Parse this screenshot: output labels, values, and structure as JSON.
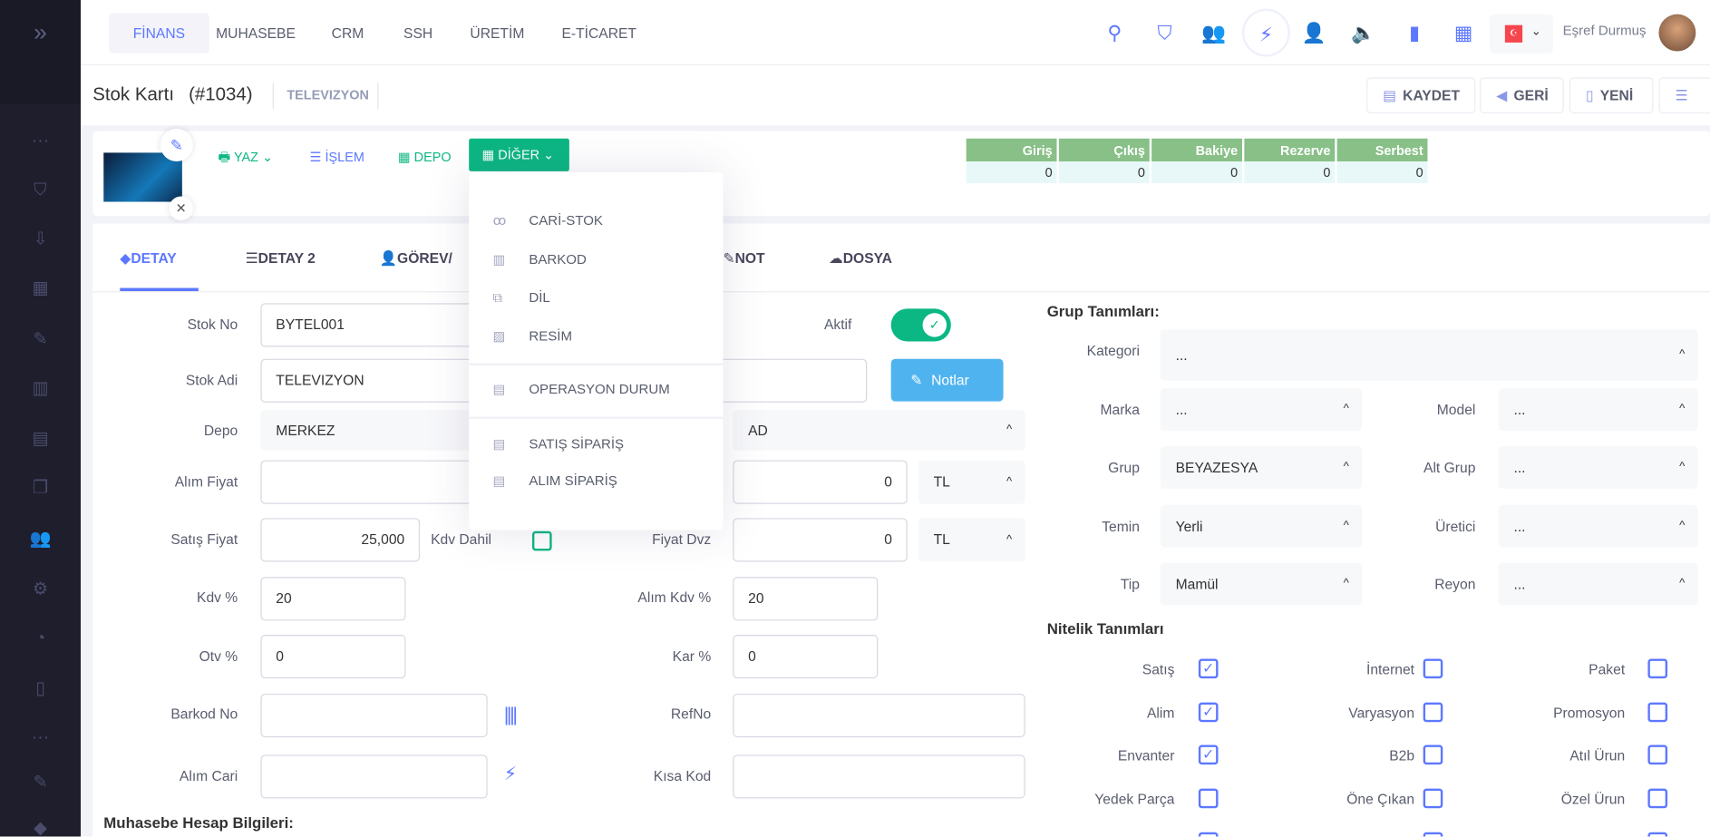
{
  "sidebar": {
    "icons": [
      "chevrons-right-icon",
      "more-icon",
      "basket-icon",
      "inbox-download-icon",
      "grid-icon",
      "edit-icon",
      "columns-icon",
      "layout-icon",
      "copy-icon",
      "users-icon",
      "gear-icon",
      "pie-chart-icon",
      "book-icon",
      "more-icon",
      "pen-icon",
      "diamond-icon"
    ]
  },
  "topnav": {
    "tabs": [
      "FİNANS",
      "MUHASEBE",
      "CRM",
      "SSH",
      "ÜRETİM",
      "E-TİCARET"
    ],
    "active": 0,
    "icons": [
      "search-icon",
      "basket-icon",
      "users-icon",
      "bolt-icon",
      "add-user-icon",
      "sound-icon",
      "bar-chart-icon",
      "apps-icon"
    ],
    "language": "TR",
    "user_name": "Eşref Durmuş"
  },
  "header": {
    "title": "Stok Kartı",
    "id": "(#1034)",
    "subtitle": "TELEVIZYON",
    "buttons": {
      "save": "KAYDET",
      "back": "GERİ",
      "new": "YENİ"
    }
  },
  "toolbar": {
    "print": "YAZ",
    "process": "İŞLEM",
    "warehouse": "DEPO",
    "other": "DİĞER"
  },
  "stock_table": {
    "headers": [
      "Giriş",
      "Çıkış",
      "Bakiye",
      "Rezerve",
      "Serbest"
    ],
    "values": [
      "0",
      "0",
      "0",
      "0",
      "0"
    ]
  },
  "other_menu": {
    "groups": [
      [
        "CARİ-STOK",
        "BARKOD",
        "DİL",
        "RESİM"
      ],
      [
        "OPERASYON DURUM"
      ],
      [
        "SATIŞ SİPARİŞ",
        "ALIM SİPARİŞ"
      ]
    ]
  },
  "tabs": [
    "DETAY",
    "DETAY 2",
    "GÖREV/",
    "NOT",
    "DOSYA"
  ],
  "form": {
    "stok_no": {
      "label": "Stok No",
      "value": "BYTEL001"
    },
    "aktif": {
      "label": "Aktif",
      "on": true
    },
    "stok_adi": {
      "label": "Stok Adi",
      "value": "TELEVIZYON"
    },
    "notlar": "Notlar",
    "depo": {
      "label": "Depo",
      "value": "MERKEZ",
      "value2": "AD"
    },
    "alim_fiyat": {
      "label": "Alım Fiyat",
      "value": "",
      "value2": "0",
      "currency": "TL"
    },
    "satis_fiyat": {
      "label": "Satış Fiyat",
      "value": "25,000"
    },
    "kdv_dahil": {
      "label": "Kdv Dahil",
      "checked": false
    },
    "fiyat_dvz": {
      "label": "Fiyat Dvz",
      "value": "0",
      "currency": "TL"
    },
    "kdv": {
      "label": "Kdv %",
      "value": "20"
    },
    "alim_kdv": {
      "label": "Alım Kdv %",
      "value": "20"
    },
    "otv": {
      "label": "Otv %",
      "value": "0"
    },
    "kar": {
      "label": "Kar %",
      "value": "0"
    },
    "barkod_no": {
      "label": "Barkod No",
      "value": ""
    },
    "refno": {
      "label": "RefNo",
      "value": ""
    },
    "alim_cari": {
      "label": "Alım Cari",
      "value": ""
    },
    "kisa_kod": {
      "label": "Kısa Kod",
      "value": ""
    },
    "muhasebe_title": "Muhasebe Hesap Bilgileri:"
  },
  "groups": {
    "title": "Grup Tanımları:",
    "kategori": {
      "label": "Kategori",
      "value": "..."
    },
    "rows": [
      [
        "Marka",
        "...",
        "Model",
        "..."
      ],
      [
        "Grup",
        "BEYAZESYA",
        "Alt Grup",
        "..."
      ],
      [
        "Temin",
        "Yerli",
        "Üretici",
        "..."
      ],
      [
        "Tip",
        "Mamül",
        "Reyon",
        "..."
      ]
    ]
  },
  "attributes": {
    "title": "Nitelik Tanımları",
    "rows": [
      [
        [
          "Satış",
          true
        ],
        [
          "İnternet",
          false
        ],
        [
          "Paket",
          false
        ]
      ],
      [
        [
          "Alim",
          true
        ],
        [
          "Varyasyon",
          false
        ],
        [
          "Promosyon",
          false
        ]
      ],
      [
        [
          "Envanter",
          true
        ],
        [
          "B2b",
          false
        ],
        [
          "Atıl Ürun",
          false
        ]
      ],
      [
        [
          "Yedek Parça",
          false
        ],
        [
          "Öne Çıkan",
          false
        ],
        [
          "Özel Ürun",
          false
        ]
      ]
    ]
  },
  "colors": {
    "accent": "#5d78ff",
    "green": "#0bb783",
    "table_header": "#88c088",
    "sidebar": "#1e1e2d",
    "notes_button": "#4fb3f0"
  }
}
